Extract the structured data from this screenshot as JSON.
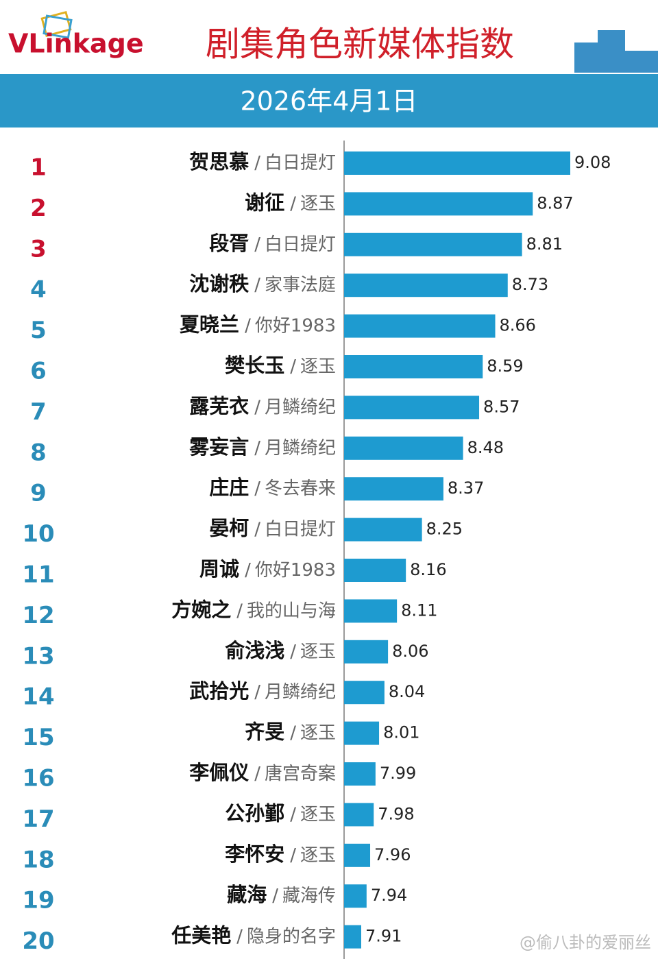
{
  "chart_data": {
    "type": "bar",
    "logo": "VLinkage",
    "title": "剧集角色新媒体指数",
    "subtitle": "2026年4月1日",
    "watermark": "@偷八卦的爱丽丝",
    "separator": "/",
    "ranks": [
      1,
      2,
      3,
      4,
      5,
      6,
      7,
      8,
      9,
      10,
      11,
      12,
      13,
      14,
      15,
      16,
      17,
      18,
      19,
      20
    ],
    "rank_colors": [
      "#c8102e",
      "#c8102e",
      "#c8102e",
      "#2a8cb8",
      "#2a8cb8",
      "#2a8cb8",
      "#2a8cb8",
      "#2a8cb8",
      "#2a8cb8",
      "#2a8cb8",
      "#2a8cb8",
      "#2a8cb8",
      "#2a8cb8",
      "#2a8cb8",
      "#2a8cb8",
      "#2a8cb8",
      "#2a8cb8",
      "#2a8cb8",
      "#2a8cb8",
      "#2a8cb8"
    ],
    "names": [
      "贺思慕",
      "谢征",
      "段胥",
      "沈谢秩",
      "夏晓兰",
      "樊长玉",
      "露芜衣",
      "雾妄言",
      "庄庄",
      "晏柯",
      "周诚",
      "方婉之",
      "俞浅浅",
      "武拾光",
      "齐旻",
      "李佩仪",
      "公孙鄞",
      "李怀安",
      "藏海",
      "任美艳"
    ],
    "categories": [
      "白日提灯",
      "逐玉",
      "白日提灯",
      "家事法庭",
      "你好1983",
      "逐玉",
      "月鳞绮纪",
      "月鳞绮纪",
      "冬去春来",
      "白日提灯",
      "你好1983",
      "我的山与海",
      "逐玉",
      "月鳞绮纪",
      "逐玉",
      "唐宫奇案",
      "逐玉",
      "逐玉",
      "藏海传",
      "隐身的名字"
    ],
    "values": [
      9.08,
      8.87,
      8.81,
      8.73,
      8.66,
      8.59,
      8.57,
      8.48,
      8.37,
      8.25,
      8.16,
      8.11,
      8.06,
      8.04,
      8.01,
      7.99,
      7.98,
      7.96,
      7.94,
      7.91
    ],
    "color": "#1e9bd0"
  }
}
